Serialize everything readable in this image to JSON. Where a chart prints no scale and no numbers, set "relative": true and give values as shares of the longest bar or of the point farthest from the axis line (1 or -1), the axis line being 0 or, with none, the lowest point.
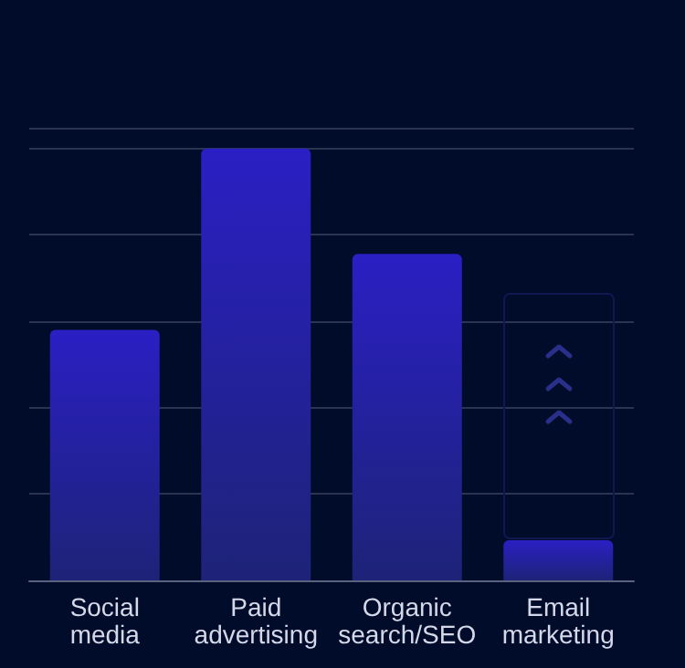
{
  "chart_data": {
    "type": "bar",
    "relative": true,
    "grid": "y",
    "categories": [
      "Social\nmedia",
      "Paid\nadvertising",
      "Organic\nsearch/SEO",
      "Email\nmarketing"
    ],
    "values": [
      0.58,
      1,
      0.756,
      0.093
    ],
    "color": "#2a1fc4"
  }
}
